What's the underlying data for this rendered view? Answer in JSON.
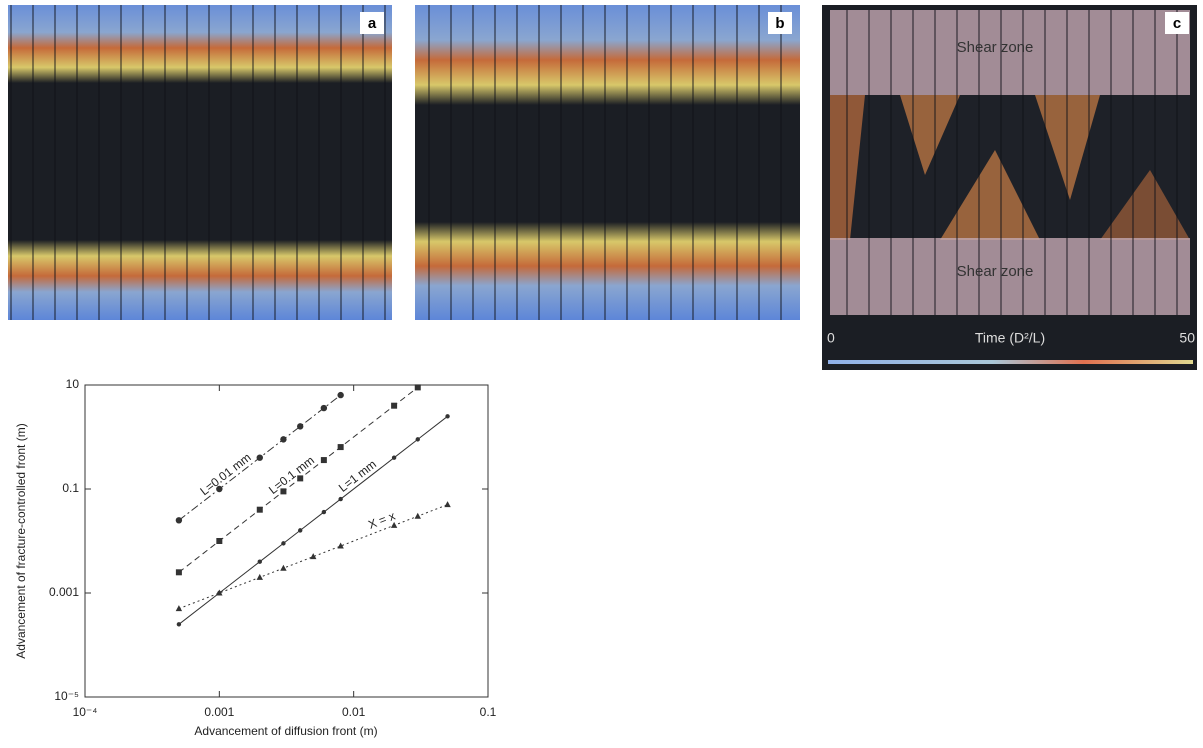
{
  "panels": [
    {
      "label": "a"
    },
    {
      "label": "b"
    },
    {
      "label": "c",
      "zones": [
        "Shear zone",
        "Shear zone"
      ],
      "colorbar": {
        "title": "Time (D²/L)",
        "min": 0,
        "max": 50
      }
    }
  ],
  "chart_data": {
    "type": "line",
    "xlabel": "Advancement of diffusion front (m)",
    "ylabel": "Advancement of fracture-controlled front (m)",
    "xscale": "log",
    "yscale": "log",
    "xlim": [
      0.0001,
      0.1
    ],
    "ylim": [
      1e-05,
      10
    ],
    "xticks": [
      {
        "value": 0.0001,
        "label": "10⁻⁴"
      },
      0.001,
      0.01,
      0.1
    ],
    "yticks": [
      {
        "value": 1e-05,
        "label": "10⁻⁵"
      },
      0.001,
      0.1,
      10
    ],
    "series": [
      {
        "name": "L=0.01 mm",
        "color": "#333333",
        "dash": "dashdot",
        "marker": "circle",
        "x": [
          0.0005,
          0.001,
          0.002,
          0.003,
          0.004,
          0.006,
          0.008
        ],
        "values": [
          0.025,
          0.1,
          0.4,
          0.9,
          1.6,
          3.6,
          6.4
        ]
      },
      {
        "name": "L=0.1 mm",
        "color": "#333333",
        "dash": "dashed",
        "marker": "square",
        "x": [
          0.0005,
          0.001,
          0.002,
          0.003,
          0.004,
          0.006,
          0.008,
          0.02,
          0.03
        ],
        "values": [
          0.0025,
          0.01,
          0.04,
          0.09,
          0.16,
          0.36,
          0.64,
          4,
          9
        ]
      },
      {
        "name": "L=1 mm",
        "color": "#333333",
        "dash": "solid",
        "marker": "dot",
        "x": [
          0.0005,
          0.001,
          0.002,
          0.003,
          0.004,
          0.006,
          0.008,
          0.02,
          0.03,
          0.05
        ],
        "values": [
          0.00025,
          0.001,
          0.004,
          0.009,
          0.016,
          0.036,
          0.064,
          0.4,
          0.9,
          2.5
        ]
      },
      {
        "name": "X = x",
        "color": "#333333",
        "dash": "dotted",
        "marker": "triangle",
        "x": [
          0.0005,
          0.001,
          0.002,
          0.003,
          0.005,
          0.008,
          0.02,
          0.03,
          0.05
        ],
        "values": [
          0.0005,
          0.001,
          0.002,
          0.003,
          0.005,
          0.008,
          0.02,
          0.03,
          0.05
        ]
      }
    ]
  }
}
